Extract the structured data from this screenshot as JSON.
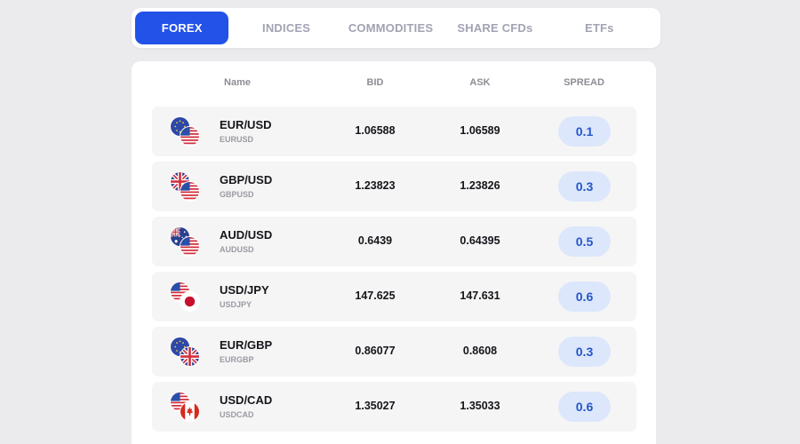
{
  "tabs": [
    {
      "label": "FOREX",
      "active": true
    },
    {
      "label": "INDICES",
      "active": false
    },
    {
      "label": "COMMODITIES",
      "active": false
    },
    {
      "label": "SHARE CFDs",
      "active": false
    },
    {
      "label": "ETFs",
      "active": false
    }
  ],
  "table": {
    "columns": {
      "name": "Name",
      "bid": "BID",
      "ask": "ASK",
      "spread": "SPREAD"
    },
    "rows": [
      {
        "pair": "EUR/USD",
        "code": "EURUSD",
        "bid": "1.06588",
        "ask": "1.06589",
        "spread": "0.1",
        "flags": [
          "eu-flag-icon",
          "us-flag-icon"
        ]
      },
      {
        "pair": "GBP/USD",
        "code": "GBPUSD",
        "bid": "1.23823",
        "ask": "1.23826",
        "spread": "0.3",
        "flags": [
          "uk-flag-icon",
          "us-flag-icon"
        ]
      },
      {
        "pair": "AUD/USD",
        "code": "AUDUSD",
        "bid": "0.6439",
        "ask": "0.64395",
        "spread": "0.5",
        "flags": [
          "au-flag-icon",
          "us-flag-icon"
        ]
      },
      {
        "pair": "USD/JPY",
        "code": "USDJPY",
        "bid": "147.625",
        "ask": "147.631",
        "spread": "0.6",
        "flags": [
          "us-flag-icon",
          "jp-flag-icon"
        ]
      },
      {
        "pair": "EUR/GBP",
        "code": "EURGBP",
        "bid": "0.86077",
        "ask": "0.8608",
        "spread": "0.3",
        "flags": [
          "eu-flag-icon",
          "uk-flag-icon"
        ]
      },
      {
        "pair": "USD/CAD",
        "code": "USDCAD",
        "bid": "1.35027",
        "ask": "1.35033",
        "spread": "0.6",
        "flags": [
          "us-flag-icon",
          "ca-flag-icon"
        ]
      }
    ]
  },
  "colors": {
    "accent": "#2352e8",
    "spread_bg": "#dde7fb",
    "spread_text": "#2456c9",
    "page_bg": "#ebebed",
    "row_bg": "#f5f5f6"
  }
}
